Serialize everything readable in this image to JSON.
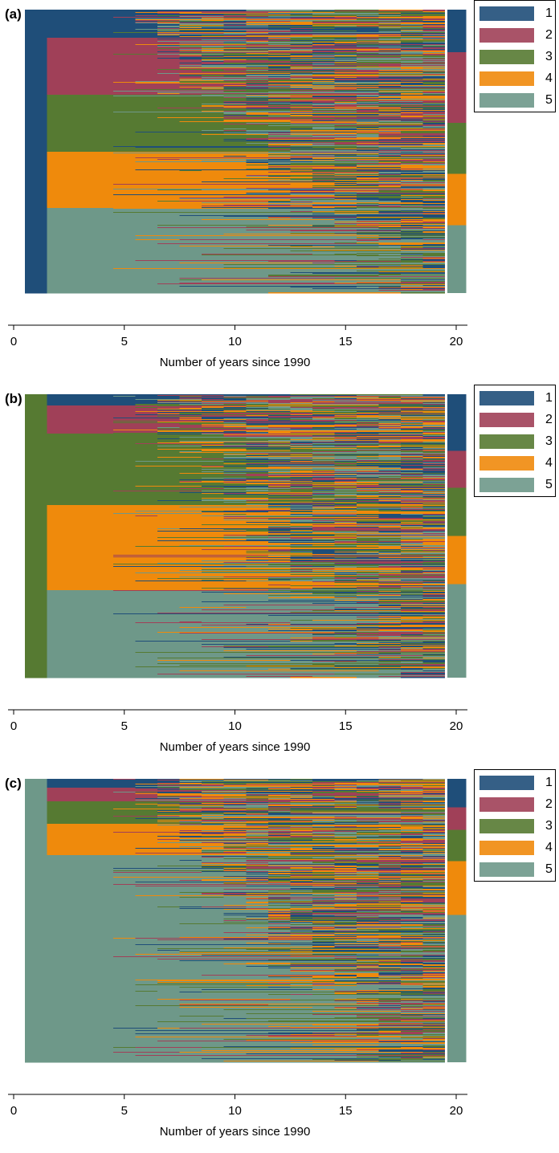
{
  "colors": {
    "1": "#1f4e79",
    "2": "#a04058",
    "3": "#567a32",
    "4": "#ef8a0c",
    "5": "#6e9889"
  },
  "chart_data": [
    {
      "type": "heatmap",
      "panel_label": "(a)",
      "initial_state": 1,
      "xlabel": "Number of years since 1990",
      "x_ticks": [
        0,
        5,
        10,
        15,
        20
      ],
      "xlim": [
        0,
        20
      ],
      "legend": {
        "placement": "right",
        "entries": [
          "1",
          "2",
          "3",
          "4",
          "5"
        ]
      },
      "year1_state_shares": [
        0.1,
        0.2,
        0.2,
        0.2,
        0.3
      ],
      "final_state_shares": [
        0.15,
        0.25,
        0.18,
        0.18,
        0.24
      ]
    },
    {
      "type": "heatmap",
      "panel_label": "(b)",
      "initial_state": 3,
      "xlabel": "Number of years since 1990",
      "x_ticks": [
        0,
        5,
        10,
        15,
        20
      ],
      "xlim": [
        0,
        20
      ],
      "legend": {
        "placement": "right",
        "entries": [
          "1",
          "2",
          "3",
          "4",
          "5"
        ]
      },
      "year1_state_shares": [
        0.04,
        0.1,
        0.25,
        0.3,
        0.31
      ],
      "final_state_shares": [
        0.2,
        0.13,
        0.17,
        0.17,
        0.33
      ]
    },
    {
      "type": "heatmap",
      "panel_label": "(c)",
      "initial_state": 5,
      "xlabel": "Number of years since 1990",
      "x_ticks": [
        0,
        5,
        10,
        15,
        20
      ],
      "xlim": [
        0,
        20
      ],
      "legend": {
        "placement": "right",
        "entries": [
          "1",
          "2",
          "3",
          "4",
          "5"
        ]
      },
      "year1_state_shares": [
        0.03,
        0.05,
        0.08,
        0.11,
        0.73
      ],
      "final_state_shares": [
        0.1,
        0.08,
        0.11,
        0.19,
        0.52
      ]
    }
  ]
}
